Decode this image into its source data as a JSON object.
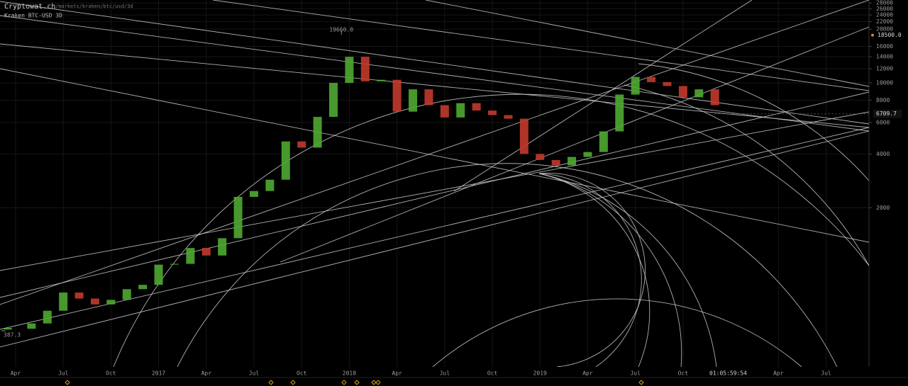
{
  "header": {
    "brand": "Cryptowat.ch",
    "path": "/markets/kraken/btc/usd/3d",
    "market": "Kraken BTC-USD 3D"
  },
  "chart_data": {
    "type": "candle",
    "log_scale": true,
    "grid": true,
    "x": [
      2.5,
      4,
      5,
      6,
      7,
      8,
      9,
      10,
      11,
      12,
      13,
      14,
      15,
      16,
      17,
      18,
      19,
      20,
      21,
      22,
      23,
      24,
      25,
      26,
      27,
      28,
      29,
      30,
      31,
      32,
      33,
      34,
      35,
      36,
      37,
      38,
      39,
      40,
      41,
      42,
      43,
      44,
      45,
      46,
      47
    ],
    "values": [
      420,
      450,
      530,
      670,
      620,
      575,
      610,
      700,
      740,
      960,
      970,
      1190,
      1080,
      1350,
      2300,
      2480,
      2870,
      4700,
      4340,
      6450,
      10000,
      14000,
      10200,
      10400,
      6900,
      9200,
      7500,
      6400,
      7700,
      7000,
      6600,
      6300,
      4000,
      3700,
      3450,
      3850,
      4100,
      5350,
      8600,
      10800,
      10100,
      9600,
      8300,
      9200,
      7500
    ],
    "colors": {
      "up": "#4fa832",
      "down": "#c23a2b"
    },
    "xlim": [
      2.02,
      56.7
    ],
    "ylim": [
      257,
      29100
    ],
    "xticks": [
      {
        "value": 3,
        "label": "Apr"
      },
      {
        "value": 6,
        "label": "Jul"
      },
      {
        "value": 9,
        "label": "Oct"
      },
      {
        "value": 12,
        "label": "2017"
      },
      {
        "value": 15,
        "label": "Apr"
      },
      {
        "value": 18,
        "label": "Jul"
      },
      {
        "value": 21,
        "label": "Oct"
      },
      {
        "value": 24,
        "label": "2018"
      },
      {
        "value": 27,
        "label": "Apr"
      },
      {
        "value": 30,
        "label": "Jul"
      },
      {
        "value": 33,
        "label": "Oct"
      },
      {
        "value": 36,
        "label": "2019"
      },
      {
        "value": 39,
        "label": "Apr"
      },
      {
        "value": 42,
        "label": "Jul"
      },
      {
        "value": 45,
        "label": "Oct"
      },
      {
        "value": 51,
        "label": "Apr"
      },
      {
        "value": 54,
        "label": "Jul"
      }
    ],
    "yticks": [
      2000,
      4000,
      6000,
      8000,
      10000,
      12000,
      14000,
      16000,
      20000,
      22000,
      24000,
      26000,
      28000
    ],
    "high": {
      "x": 23.5,
      "value": 19660,
      "label": "19660.0"
    },
    "low": {
      "x": 2.1,
      "value": 387.3,
      "label": "387.3"
    },
    "last_price": 6709.7,
    "alert": {
      "value": 18500,
      "label": "18500.0"
    },
    "countdown": "01:05:59:54"
  }
}
